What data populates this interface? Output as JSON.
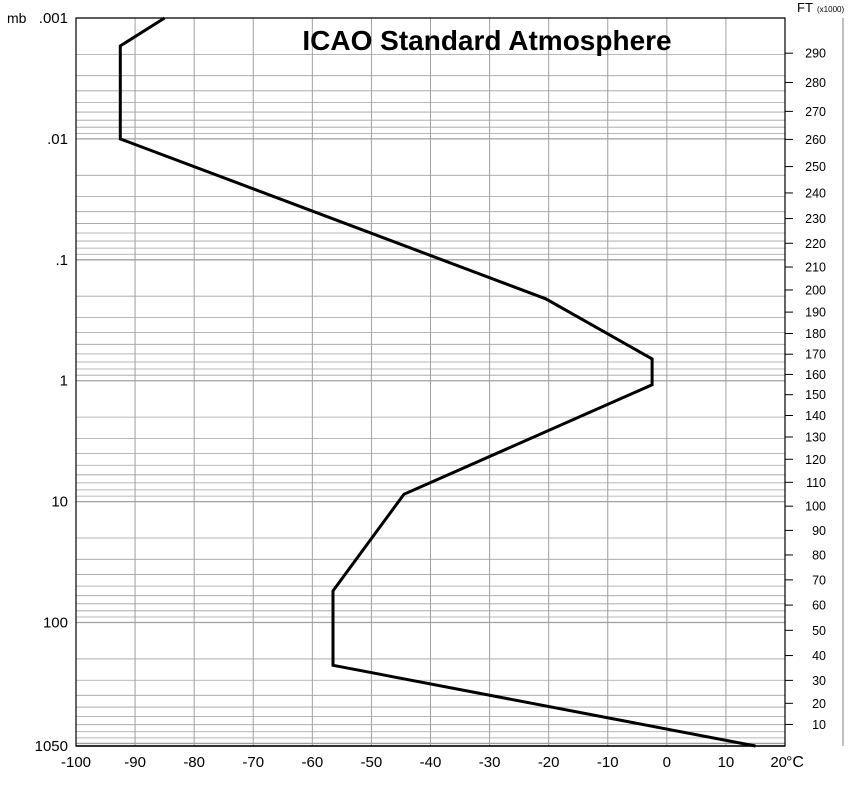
{
  "chart_data": {
    "type": "line",
    "title": "ICAO Standard Atmosphere",
    "left_axis_unit": "mb",
    "right_axis_unit": "FT",
    "right_axis_multiplier": "(x1000)",
    "x_unit_suffix": "°C",
    "xlim": [
      -100,
      20
    ],
    "ylim_pressure_mb": [
      1050,
      0.001
    ],
    "y_scale": "log",
    "grid": true,
    "pressure_tick_labels": [
      {
        "value": 0.001,
        "label": ".001"
      },
      {
        "value": 0.01,
        "label": ".01"
      },
      {
        "value": 0.1,
        "label": ".1"
      },
      {
        "value": 1,
        "label": "1"
      },
      {
        "value": 10,
        "label": "10"
      },
      {
        "value": 100,
        "label": "100"
      },
      {
        "value": 1050,
        "label": "1050"
      }
    ],
    "x_ticks": [
      {
        "value": -100,
        "label": "-100"
      },
      {
        "value": -90,
        "label": "-90"
      },
      {
        "value": -80,
        "label": "-80"
      },
      {
        "value": -70,
        "label": "-70"
      },
      {
        "value": -60,
        "label": "-60"
      },
      {
        "value": -50,
        "label": "-50"
      },
      {
        "value": -40,
        "label": "-40"
      },
      {
        "value": -30,
        "label": "-30"
      },
      {
        "value": -20,
        "label": "-20"
      },
      {
        "value": -10,
        "label": "-10"
      },
      {
        "value": 0,
        "label": "0"
      },
      {
        "value": 10,
        "label": "10"
      },
      {
        "value": 20,
        "label": "20"
      }
    ],
    "altitude_ticks_kft": [
      10,
      20,
      30,
      40,
      50,
      60,
      70,
      80,
      90,
      100,
      110,
      120,
      130,
      140,
      150,
      160,
      170,
      180,
      190,
      200,
      210,
      220,
      230,
      240,
      250,
      260,
      270,
      280,
      290
    ],
    "series": [
      {
        "values": [
          {
            "x": 15,
            "y": 1050
          },
          {
            "x": -56.5,
            "y": 226
          },
          {
            "x": -56.5,
            "y": 54.7
          },
          {
            "x": -44.5,
            "y": 8.7
          },
          {
            "x": -2.5,
            "y": 1.08
          },
          {
            "x": -2.5,
            "y": 0.66
          },
          {
            "x": -20.5,
            "y": 0.21
          },
          {
            "x": -92.5,
            "y": 0.01
          },
          {
            "x": -92.5,
            "y": 0.0017
          },
          {
            "x": -85,
            "y": 0.001
          }
        ],
        "color": "#000000"
      }
    ],
    "colors": {
      "line": "#000000",
      "grid": "#a0a0a0",
      "axis": "#000000"
    }
  }
}
